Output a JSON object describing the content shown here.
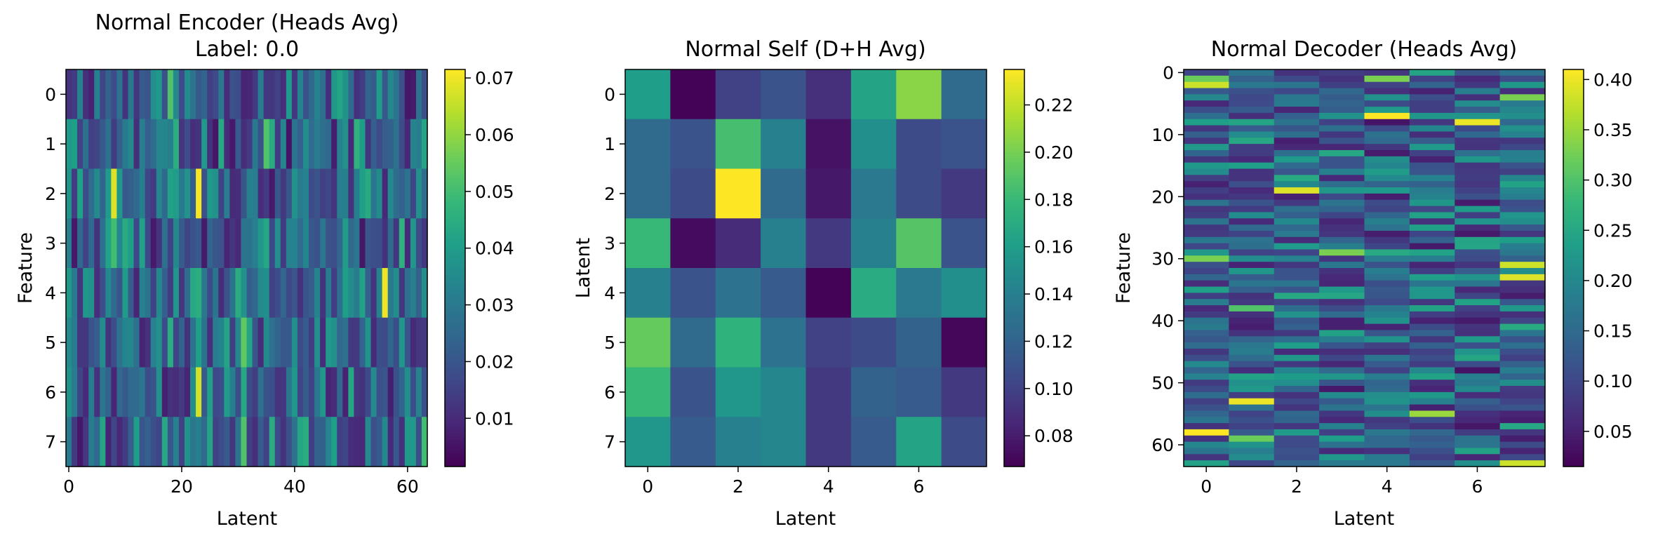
{
  "chart_data": [
    {
      "type": "heatmap",
      "title": "Normal Encoder (Heads Avg)",
      "subtitle": "Label: 0.0",
      "xlabel": "Latent",
      "ylabel": "Feature",
      "rows": 8,
      "cols": 64,
      "xticks": [
        0,
        20,
        40,
        60
      ],
      "yticks": [
        0,
        1,
        2,
        3,
        4,
        5,
        6,
        7
      ],
      "colorbar": {
        "min": 0.0015,
        "max": 0.0715,
        "ticks": [
          0.01,
          0.02,
          0.03,
          0.04,
          0.05,
          0.06,
          0.07
        ],
        "tick_labels": [
          "0.01",
          "0.02",
          "0.03",
          "0.04",
          "0.05",
          "0.06",
          "0.07"
        ]
      },
      "colormap": "viridis",
      "highlights": [
        {
          "row": 2,
          "col": 8,
          "value": 0.068
        },
        {
          "row": 2,
          "col": 23,
          "value": 0.071
        },
        {
          "row": 4,
          "col": 56,
          "value": 0.07
        },
        {
          "row": 6,
          "col": 23,
          "value": 0.067
        },
        {
          "row": 0,
          "col": 18,
          "value": 0.052
        },
        {
          "row": 1,
          "col": 35,
          "value": 0.052
        },
        {
          "row": 3,
          "col": 8,
          "value": 0.05
        },
        {
          "row": 5,
          "col": 31,
          "value": 0.054
        },
        {
          "row": 7,
          "col": 31,
          "value": 0.052
        },
        {
          "row": 7,
          "col": 63,
          "value": 0.05
        }
      ],
      "seed": 11
    },
    {
      "type": "heatmap",
      "title": "Normal Self (D+H Avg)",
      "xlabel": "Latent",
      "ylabel": "Latent",
      "rows": 8,
      "cols": 8,
      "xticks": [
        0,
        2,
        4,
        6
      ],
      "yticks": [
        0,
        1,
        2,
        3,
        4,
        5,
        6,
        7
      ],
      "colorbar": {
        "min": 0.067,
        "max": 0.235,
        "ticks": [
          0.08,
          0.1,
          0.12,
          0.14,
          0.16,
          0.18,
          0.2,
          0.22
        ],
        "tick_labels": [
          "0.08",
          "0.10",
          "0.12",
          "0.14",
          "0.16",
          "0.18",
          "0.20",
          "0.22"
        ]
      },
      "colormap": "viridis",
      "values": [
        [
          0.16,
          0.068,
          0.1,
          0.11,
          0.09,
          0.165,
          0.205,
          0.125
        ],
        [
          0.125,
          0.11,
          0.185,
          0.14,
          0.075,
          0.15,
          0.105,
          0.11
        ],
        [
          0.125,
          0.105,
          0.235,
          0.125,
          0.078,
          0.135,
          0.105,
          0.095
        ],
        [
          0.18,
          0.072,
          0.088,
          0.14,
          0.095,
          0.14,
          0.19,
          0.11
        ],
        [
          0.14,
          0.11,
          0.13,
          0.115,
          0.068,
          0.17,
          0.135,
          0.15
        ],
        [
          0.195,
          0.125,
          0.175,
          0.13,
          0.1,
          0.105,
          0.12,
          0.07
        ],
        [
          0.18,
          0.11,
          0.155,
          0.145,
          0.095,
          0.12,
          0.115,
          0.095
        ],
        [
          0.155,
          0.115,
          0.14,
          0.145,
          0.095,
          0.115,
          0.165,
          0.105
        ]
      ]
    },
    {
      "type": "heatmap",
      "title": "Normal Decoder (Heads Avg)",
      "xlabel": "Latent",
      "ylabel": "Feature",
      "rows": 64,
      "cols": 8,
      "xticks": [
        0,
        2,
        4,
        6
      ],
      "yticks": [
        0,
        10,
        20,
        30,
        40,
        50,
        60
      ],
      "colorbar": {
        "min": 0.015,
        "max": 0.41,
        "ticks": [
          0.05,
          0.1,
          0.15,
          0.2,
          0.25,
          0.3,
          0.35,
          0.4
        ],
        "tick_labels": [
          "0.05",
          "0.10",
          "0.15",
          "0.20",
          "0.25",
          "0.30",
          "0.35",
          "0.40"
        ]
      },
      "colormap": "viridis",
      "highlights": [
        {
          "row": 1,
          "col": 0,
          "value": 0.32
        },
        {
          "row": 1,
          "col": 4,
          "value": 0.33
        },
        {
          "row": 2,
          "col": 0,
          "value": 0.38
        },
        {
          "row": 4,
          "col": 7,
          "value": 0.33
        },
        {
          "row": 7,
          "col": 4,
          "value": 0.41
        },
        {
          "row": 8,
          "col": 6,
          "value": 0.4
        },
        {
          "row": 19,
          "col": 2,
          "value": 0.39
        },
        {
          "row": 29,
          "col": 3,
          "value": 0.33
        },
        {
          "row": 30,
          "col": 0,
          "value": 0.33
        },
        {
          "row": 31,
          "col": 7,
          "value": 0.38
        },
        {
          "row": 33,
          "col": 7,
          "value": 0.39
        },
        {
          "row": 38,
          "col": 1,
          "value": 0.3
        },
        {
          "row": 53,
          "col": 1,
          "value": 0.4
        },
        {
          "row": 55,
          "col": 5,
          "value": 0.35
        },
        {
          "row": 58,
          "col": 0,
          "value": 0.41
        },
        {
          "row": 59,
          "col": 1,
          "value": 0.32
        },
        {
          "row": 63,
          "col": 7,
          "value": 0.38
        }
      ],
      "seed": 7
    }
  ]
}
